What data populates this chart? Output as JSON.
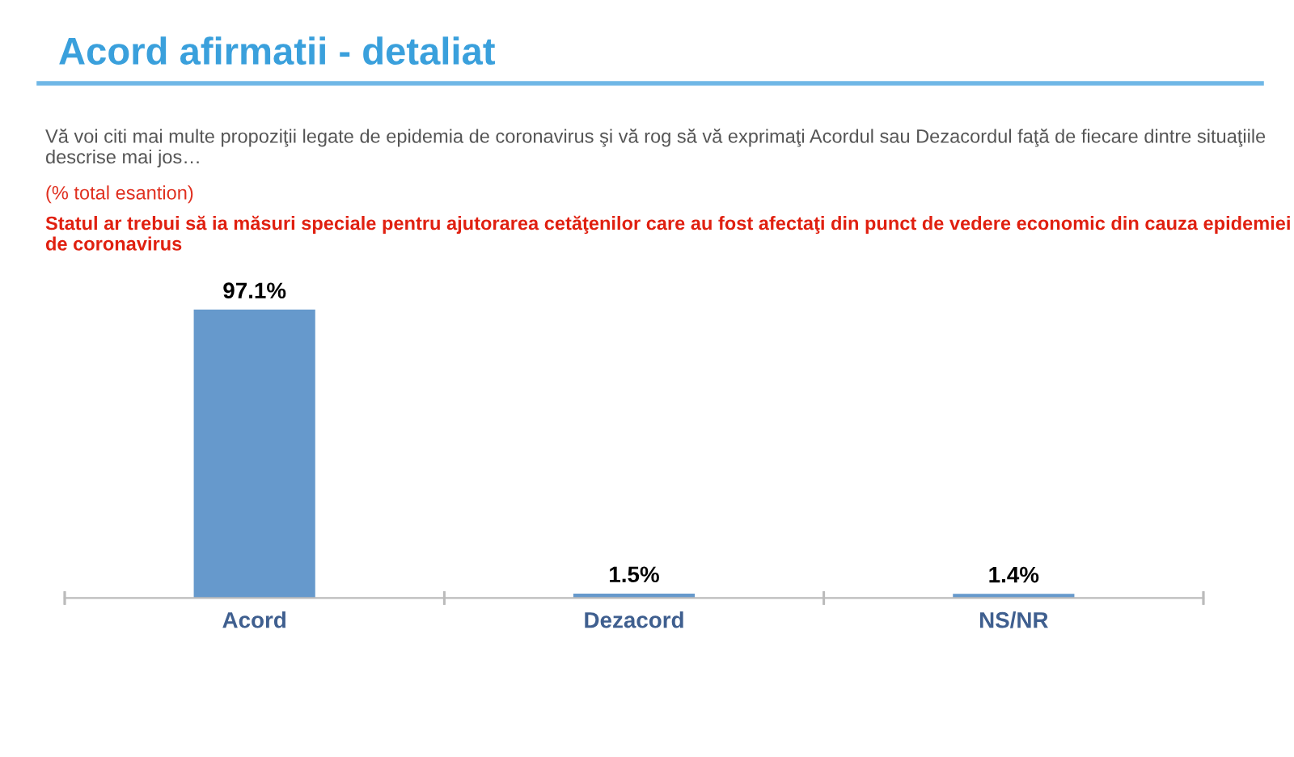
{
  "chart_data": {
    "type": "bar",
    "title": "Acord afirmatii - detaliat",
    "subtitle": "Vă voi citi mai multe propoziţii legate de epidemia de coronavirus şi vă rog să vă exprimaţi Acordul sau Dezacordul faţă de fiecare dintre situaţiile descrise mai jos…",
    "annotations": [
      "(% total esantion)",
      "Statul ar trebui să ia măsuri speciale pentru ajutorarea cetăţenilor care au fost afectaţi din punct de vedere economic din cauza epidemiei de coronavirus"
    ],
    "categories": [
      "Acord",
      "Dezacord",
      "NS/NR"
    ],
    "values": [
      97.1,
      1.5,
      1.4
    ],
    "value_labels": [
      "97.1%",
      "1.5%",
      "1.4%"
    ],
    "color": "#6699cc",
    "grid": false,
    "legend": false
  }
}
